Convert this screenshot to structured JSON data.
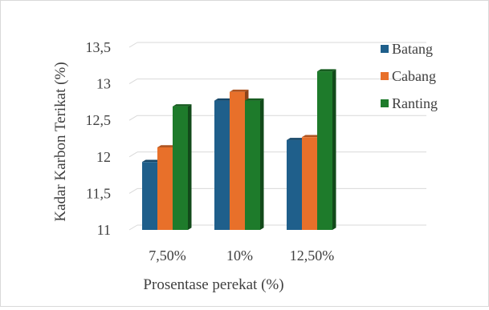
{
  "chart_data": {
    "type": "bar",
    "style": "3d-clustered-column",
    "categories": [
      "7,50%",
      "10%",
      "12,50%"
    ],
    "series": [
      {
        "name": "Batang",
        "color": "#1f5f8b",
        "values": [
          11.93,
          12.77,
          12.23
        ]
      },
      {
        "name": "Cabang",
        "color": "#e8702a",
        "values": [
          12.13,
          12.89,
          12.27
        ]
      },
      {
        "name": "Ranting",
        "color": "#1e7b2b",
        "values": [
          12.69,
          12.77,
          13.17
        ]
      }
    ],
    "xlabel": "Prosentase perekat (%)",
    "ylabel": "Kadar Karbon Terikat (%)",
    "ylim": [
      11,
      13.5
    ],
    "yticks": [
      "11",
      "11,5",
      "12",
      "12,5",
      "13",
      "13,5"
    ],
    "grid": true,
    "legend_position": "right"
  }
}
